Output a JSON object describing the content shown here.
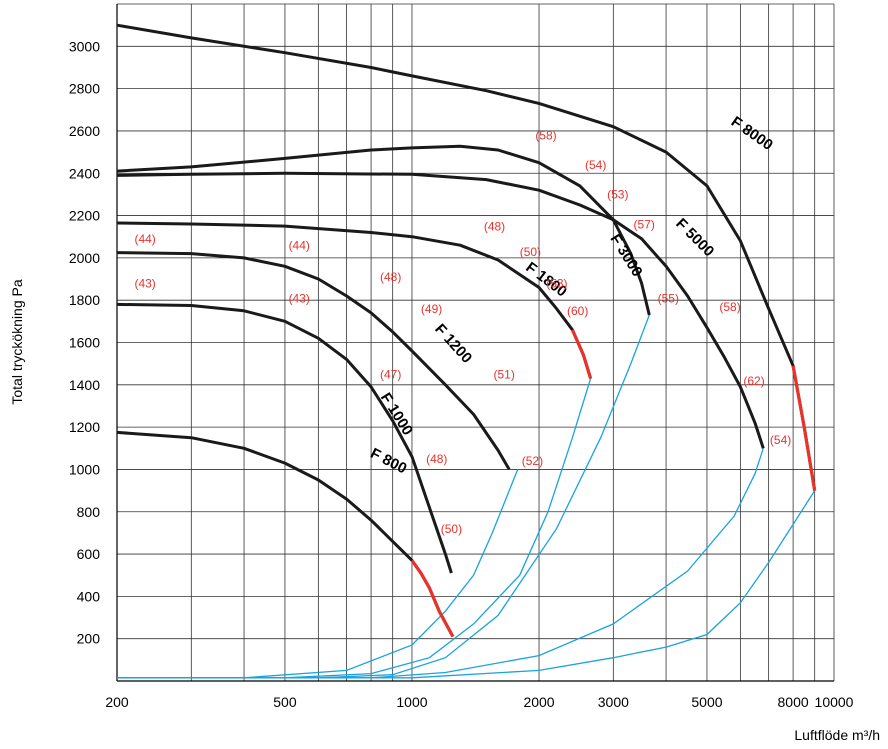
{
  "chart_data": {
    "type": "line",
    "xscale": "log",
    "xlim": [
      200,
      10000
    ],
    "ylim": [
      0,
      3200
    ],
    "grid": true,
    "xlabel": "Luftflöde m³/h",
    "ylabel": "Total tryckökning Pa",
    "xticks": [
      200,
      300,
      400,
      500,
      600,
      700,
      800,
      900,
      1000,
      2000,
      3000,
      4000,
      5000,
      6000,
      7000,
      8000,
      9000,
      10000
    ],
    "xtick_labels": [
      {
        "v": 200,
        "t": "200"
      },
      {
        "v": 500,
        "t": "500"
      },
      {
        "v": 1000,
        "t": "1000"
      },
      {
        "v": 2000,
        "t": "2000"
      },
      {
        "v": 3000,
        "t": "3000"
      },
      {
        "v": 5000,
        "t": "5000"
      },
      {
        "v": 8000,
        "t": "8000"
      },
      {
        "v": 10000,
        "t": "10000"
      }
    ],
    "yticks": [
      200,
      400,
      600,
      800,
      1000,
      1200,
      1400,
      1600,
      1800,
      2000,
      2200,
      2400,
      2600,
      2800,
      3000
    ],
    "ytick_labels": [
      "200",
      "400",
      "600",
      "800",
      "1000",
      "1200",
      "1400",
      "1600",
      "1800",
      "2000",
      "2200",
      "2400",
      "2600",
      "2800",
      "3000"
    ],
    "colors": {
      "curve": "#1a1a1a",
      "limit": "#e8322c",
      "system": "#1aa3df",
      "efficiency": "#e8322c"
    },
    "fan_curves": [
      {
        "name": "F 800",
        "points": [
          [
            200,
            1175
          ],
          [
            300,
            1150
          ],
          [
            400,
            1100
          ],
          [
            500,
            1030
          ],
          [
            600,
            950
          ],
          [
            700,
            860
          ],
          [
            800,
            760
          ],
          [
            900,
            660
          ],
          [
            1000,
            570
          ],
          [
            1050,
            510
          ],
          [
            1100,
            440
          ],
          [
            1160,
            330
          ],
          [
            1250,
            210
          ]
        ],
        "red_from": 1000
      },
      {
        "name": "F 1000",
        "points": [
          [
            200,
            1780
          ],
          [
            300,
            1775
          ],
          [
            400,
            1750
          ],
          [
            500,
            1700
          ],
          [
            600,
            1620
          ],
          [
            700,
            1520
          ],
          [
            800,
            1390
          ],
          [
            900,
            1230
          ],
          [
            1000,
            1060
          ],
          [
            1100,
            820
          ],
          [
            1200,
            600
          ],
          [
            1240,
            510
          ]
        ],
        "red_from": null
      },
      {
        "name": "F 1200",
        "points": [
          [
            200,
            2025
          ],
          [
            300,
            2020
          ],
          [
            400,
            2000
          ],
          [
            500,
            1960
          ],
          [
            600,
            1900
          ],
          [
            700,
            1820
          ],
          [
            800,
            1740
          ],
          [
            900,
            1650
          ],
          [
            1000,
            1560
          ],
          [
            1200,
            1400
          ],
          [
            1400,
            1260
          ],
          [
            1600,
            1090
          ],
          [
            1700,
            1000
          ]
        ],
        "red_from": null
      },
      {
        "name": "F 1800",
        "points": [
          [
            200,
            2165
          ],
          [
            300,
            2160
          ],
          [
            500,
            2150
          ],
          [
            800,
            2120
          ],
          [
            1000,
            2100
          ],
          [
            1300,
            2060
          ],
          [
            1600,
            1990
          ],
          [
            2000,
            1860
          ],
          [
            2200,
            1760
          ],
          [
            2400,
            1660
          ],
          [
            2550,
            1540
          ],
          [
            2650,
            1430
          ]
        ],
        "red_from": 2300
      },
      {
        "name": "F 3000",
        "points": [
          [
            200,
            2410
          ],
          [
            300,
            2430
          ],
          [
            500,
            2470
          ],
          [
            800,
            2510
          ],
          [
            1000,
            2520
          ],
          [
            1300,
            2528
          ],
          [
            1600,
            2510
          ],
          [
            2000,
            2450
          ],
          [
            2500,
            2340
          ],
          [
            3000,
            2180
          ],
          [
            3300,
            2020
          ],
          [
            3500,
            1880
          ],
          [
            3650,
            1730
          ]
        ],
        "red_from": null
      },
      {
        "name": "F 5000",
        "points": [
          [
            200,
            2390
          ],
          [
            300,
            2395
          ],
          [
            500,
            2400
          ],
          [
            1000,
            2395
          ],
          [
            1500,
            2370
          ],
          [
            2000,
            2320
          ],
          [
            2500,
            2250
          ],
          [
            3000,
            2180
          ],
          [
            3500,
            2090
          ],
          [
            4000,
            1960
          ],
          [
            4500,
            1820
          ],
          [
            5000,
            1670
          ],
          [
            5500,
            1530
          ],
          [
            6000,
            1390
          ],
          [
            6500,
            1220
          ],
          [
            6800,
            1100
          ]
        ],
        "red_from": null
      },
      {
        "name": "F 8000",
        "points": [
          [
            200,
            3100
          ],
          [
            300,
            3040
          ],
          [
            500,
            2970
          ],
          [
            800,
            2900
          ],
          [
            1000,
            2860
          ],
          [
            1500,
            2790
          ],
          [
            2000,
            2730
          ],
          [
            3000,
            2620
          ],
          [
            4000,
            2500
          ],
          [
            5000,
            2340
          ],
          [
            6000,
            2080
          ],
          [
            7000,
            1760
          ],
          [
            8000,
            1490
          ],
          [
            8500,
            1200
          ],
          [
            9000,
            900
          ]
        ],
        "red_from": 8000
      }
    ],
    "system_curves": [
      {
        "points": [
          [
            200,
            15
          ],
          [
            400,
            15
          ],
          [
            700,
            50
          ],
          [
            1000,
            170
          ],
          [
            1200,
            330
          ],
          [
            1400,
            500
          ],
          [
            1550,
            700
          ],
          [
            1700,
            900
          ],
          [
            1780,
            1000
          ]
        ]
      },
      {
        "points": [
          [
            200,
            15
          ],
          [
            500,
            15
          ],
          [
            800,
            35
          ],
          [
            1100,
            110
          ],
          [
            1400,
            270
          ],
          [
            1800,
            500
          ],
          [
            2100,
            800
          ],
          [
            2400,
            1150
          ],
          [
            2650,
            1430
          ]
        ]
      },
      {
        "points": [
          [
            200,
            15
          ],
          [
            600,
            15
          ],
          [
            900,
            30
          ],
          [
            1200,
            110
          ],
          [
            1600,
            310
          ],
          [
            2200,
            720
          ],
          [
            2800,
            1150
          ],
          [
            3300,
            1500
          ],
          [
            3650,
            1730
          ]
        ]
      },
      {
        "points": [
          [
            200,
            15
          ],
          [
            800,
            15
          ],
          [
            1200,
            40
          ],
          [
            2000,
            120
          ],
          [
            3000,
            270
          ],
          [
            4500,
            520
          ],
          [
            5800,
            780
          ],
          [
            6500,
            980
          ],
          [
            6800,
            1100
          ]
        ]
      },
      {
        "points": [
          [
            200,
            15
          ],
          [
            1000,
            15
          ],
          [
            2000,
            50
          ],
          [
            3000,
            110
          ],
          [
            4000,
            160
          ],
          [
            5000,
            220
          ],
          [
            6000,
            370
          ],
          [
            7000,
            560
          ],
          [
            8000,
            740
          ],
          [
            9000,
            900
          ]
        ]
      }
    ],
    "curve_labels": [
      {
        "text": "F 800",
        "x": 870,
        "y": 1020,
        "angle": 27
      },
      {
        "text": "F 1000",
        "x": 900,
        "y": 1250,
        "angle": 58
      },
      {
        "text": "F 1200",
        "x": 1230,
        "y": 1580,
        "angle": 48
      },
      {
        "text": "F 1800",
        "x": 2050,
        "y": 1880,
        "angle": 37
      },
      {
        "text": "F 3000",
        "x": 3150,
        "y": 2000,
        "angle": 58
      },
      {
        "text": "F 5000",
        "x": 4600,
        "y": 2080,
        "angle": 45
      },
      {
        "text": "F 8000",
        "x": 6300,
        "y": 2570,
        "angle": 35
      }
    ],
    "efficiency_labels": [
      {
        "text": "(44)",
        "x": 220,
        "y": 2070
      },
      {
        "text": "(43)",
        "x": 220,
        "y": 1860
      },
      {
        "text": "(44)",
        "x": 510,
        "y": 2040
      },
      {
        "text": "(43)",
        "x": 510,
        "y": 1790
      },
      {
        "text": "(48)",
        "x": 840,
        "y": 1890
      },
      {
        "text": "(49)",
        "x": 1050,
        "y": 1740
      },
      {
        "text": "(47)",
        "x": 840,
        "y": 1430
      },
      {
        "text": "(51)",
        "x": 1560,
        "y": 1430
      },
      {
        "text": "(48)",
        "x": 1080,
        "y": 1030
      },
      {
        "text": "(52)",
        "x": 1820,
        "y": 1020
      },
      {
        "text": "(50)",
        "x": 1170,
        "y": 700
      },
      {
        "text": "(48)",
        "x": 1480,
        "y": 2130
      },
      {
        "text": "(50)",
        "x": 1800,
        "y": 2010
      },
      {
        "text": "(53)",
        "x": 2080,
        "y": 1860
      },
      {
        "text": "(60)",
        "x": 2330,
        "y": 1730
      },
      {
        "text": "(58)",
        "x": 1960,
        "y": 2560
      },
      {
        "text": "(54)",
        "x": 2570,
        "y": 2420
      },
      {
        "text": "(53)",
        "x": 2900,
        "y": 2280
      },
      {
        "text": "(57)",
        "x": 3350,
        "y": 2140
      },
      {
        "text": "(55)",
        "x": 3820,
        "y": 1790
      },
      {
        "text": "(58)",
        "x": 5350,
        "y": 1750
      },
      {
        "text": "(62)",
        "x": 6100,
        "y": 1400
      },
      {
        "text": "(54)",
        "x": 7050,
        "y": 1120
      }
    ]
  }
}
